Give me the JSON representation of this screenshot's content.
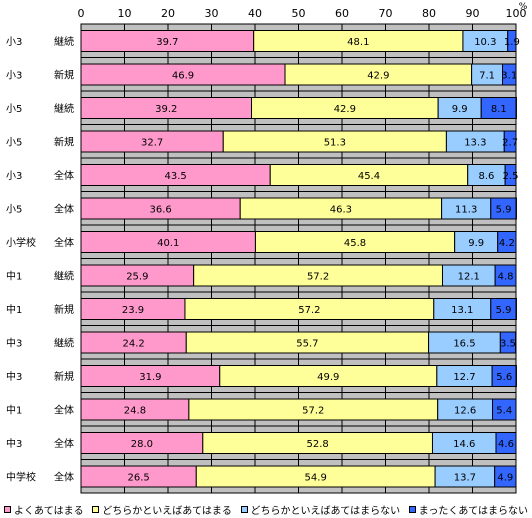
{
  "chart_data": {
    "type": "bar",
    "orientation": "horizontal",
    "stacked": true,
    "percent_unit": "%",
    "xlim": [
      0,
      100
    ],
    "x_ticks": [
      0,
      10,
      20,
      30,
      40,
      50,
      60,
      70,
      80,
      90,
      100
    ],
    "grid": true,
    "legend_position": "bottom",
    "categories": [
      "小3 継続",
      "小3 新規",
      "小5 継続",
      "小5 新規",
      "小3 全体",
      "小5 全体",
      "小学校 全体",
      "中1 継続",
      "中1 新規",
      "中3 継続",
      "中3 新規",
      "中1 全体",
      "中3 全体",
      "中学校 全体"
    ],
    "series": [
      {
        "name": "よくあてはまる",
        "color": "#ff99cc",
        "values": [
          39.7,
          46.9,
          39.2,
          32.7,
          43.5,
          36.6,
          40.1,
          25.9,
          23.9,
          24.2,
          31.9,
          24.8,
          28.0,
          26.5
        ],
        "labels": [
          "39.7",
          "46.9",
          "39.2",
          "32.7",
          "43.5",
          "36.6",
          "40.1",
          "25.9",
          "23.9",
          "24.2",
          "31.9",
          "24.8",
          "28.0",
          "26.5"
        ]
      },
      {
        "name": "どちらかといえばあてはまる",
        "color": "#ffff99",
        "values": [
          48.1,
          42.9,
          42.9,
          51.3,
          45.4,
          46.3,
          45.8,
          57.2,
          57.2,
          55.7,
          49.9,
          57.2,
          52.8,
          54.9
        ],
        "labels": [
          "48.1",
          "42.9",
          "42.9",
          "51.3",
          "45.4",
          "46.3",
          "45.8",
          "57.2",
          "57.2",
          "55.7",
          "49.9",
          "57.2",
          "52.8",
          "54.9"
        ]
      },
      {
        "name": "どちらかといえばあてはまらない",
        "color": "#99ccff",
        "values": [
          10.3,
          7.1,
          9.9,
          13.3,
          8.6,
          11.3,
          9.9,
          12.1,
          13.1,
          16.5,
          12.7,
          12.6,
          14.6,
          13.7
        ],
        "labels": [
          "10.3",
          "7.1",
          "9.9",
          "13.3",
          "8.6",
          "11.3",
          "9.9",
          "12.1",
          "13.1",
          "16.5",
          "12.7",
          "12.6",
          "14.6",
          "13.7"
        ]
      },
      {
        "name": "まったくあてはまらない",
        "color": "#3366ff",
        "values": [
          1.9,
          3.1,
          8.1,
          2.7,
          2.5,
          5.9,
          4.2,
          4.8,
          5.9,
          3.5,
          5.6,
          5.4,
          4.6,
          4.9
        ],
        "labels": [
          "1.9",
          "3.1",
          "8.1",
          "2.7",
          "2.5",
          "5.9",
          "4.2",
          "4.8",
          "5.9",
          "3.5",
          "5.6",
          "5.4",
          "4.6",
          "4.9"
        ]
      }
    ]
  },
  "legend": [
    {
      "label": "よくあてはまる",
      "color": "#ff99cc"
    },
    {
      "label": "どちらかといえばあてはまる",
      "color": "#ffff99"
    },
    {
      "label": "どちらかといえばあてはまらない",
      "color": "#99ccff"
    },
    {
      "label": "まったくあてはまらない",
      "color": "#3366ff"
    }
  ]
}
